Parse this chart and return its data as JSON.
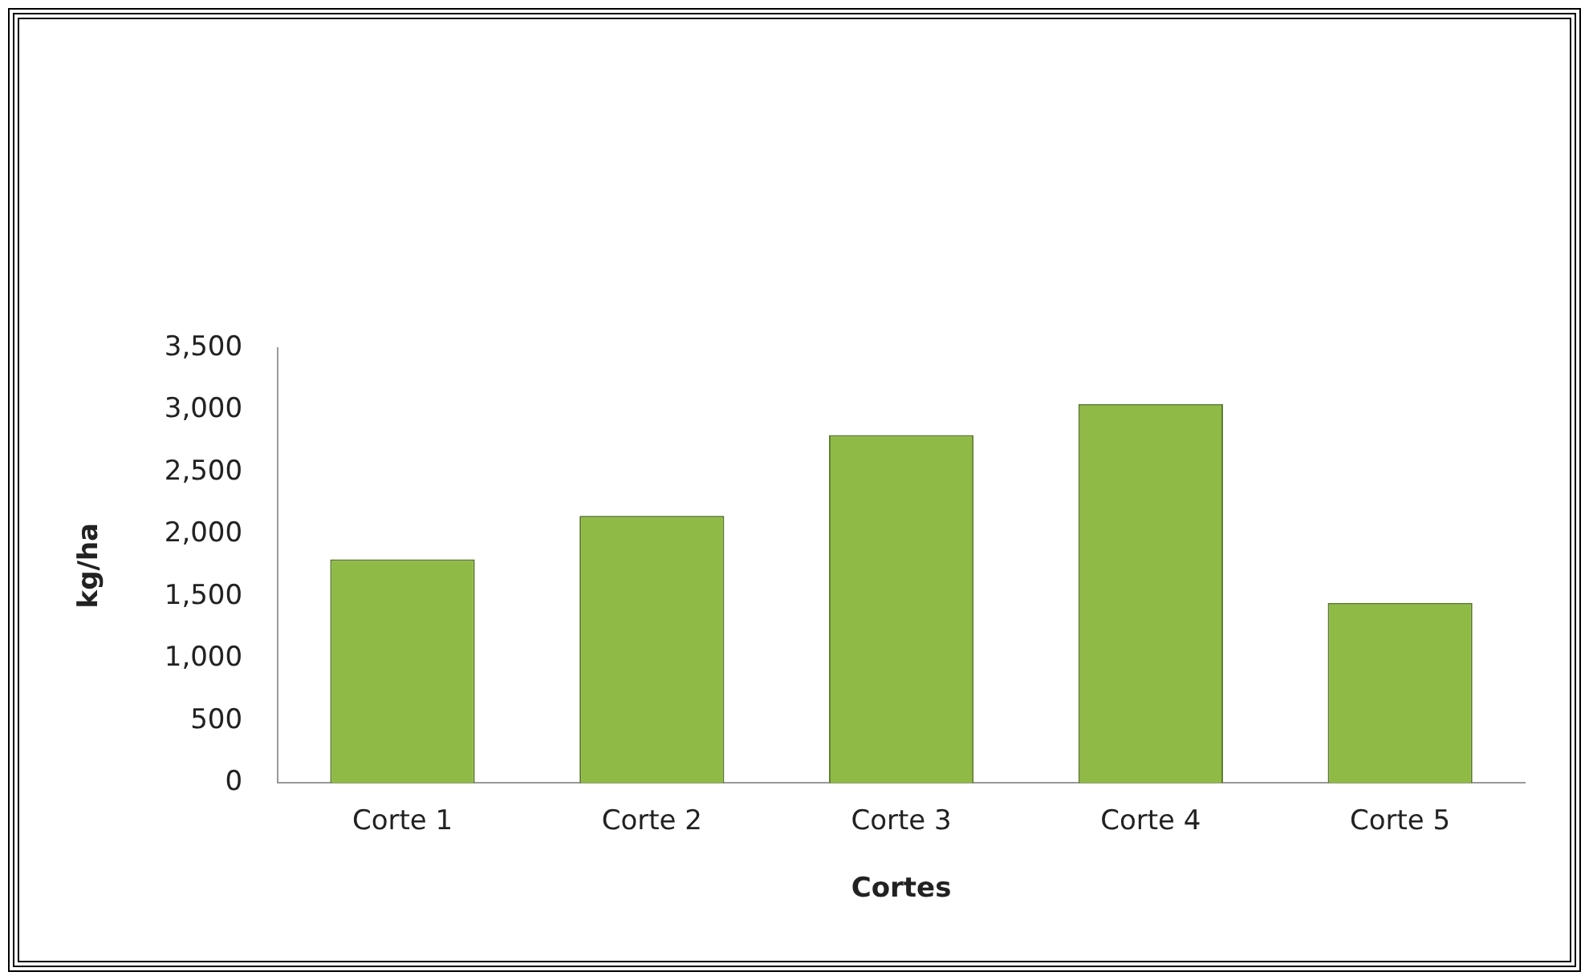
{
  "chart_data": {
    "type": "bar",
    "xlabel": "Cortes",
    "ylabel": "kg/ha",
    "categories": [
      "Corte 1",
      "Corte 2",
      "Corte 3",
      "Corte 4",
      "Corte 5"
    ],
    "values": [
      1800,
      2150,
      2800,
      3050,
      1450
    ],
    "color": "#8fba45",
    "ylim": [
      0,
      3500
    ],
    "yticks": [
      0,
      500,
      {
        "value": 1000,
        "label": "1,000"
      },
      {
        "value": 1500,
        "label": "1,500"
      },
      {
        "value": 2000,
        "label": "2,000"
      },
      {
        "value": 2500,
        "label": "2,500"
      },
      {
        "value": 3000,
        "label": "3,000"
      },
      {
        "value": 3500,
        "label": "3,500"
      }
    ],
    "grid": false,
    "legend": false
  }
}
